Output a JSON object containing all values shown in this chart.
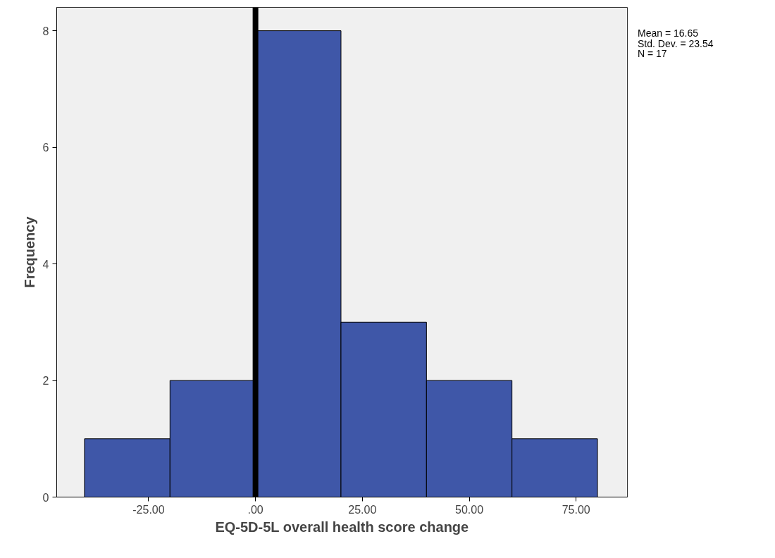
{
  "chart_data": {
    "type": "histogram",
    "xlabel": "EQ-5D-5L overall health score change",
    "ylabel": "Frequency",
    "bins": [
      -40,
      -20,
      0,
      20,
      40,
      60,
      80
    ],
    "values": [
      1,
      2,
      8,
      3,
      2,
      1
    ],
    "color": "#3f57a8",
    "xlim": [
      -46.5,
      87
    ],
    "ylim": [
      0,
      8.4
    ],
    "xticks": [
      {
        "value": -25,
        "label": "-25.00"
      },
      {
        "value": 0,
        "label": ".00"
      },
      {
        "value": 25,
        "label": "25.00"
      },
      {
        "value": 50,
        "label": "50.00"
      },
      {
        "value": 75,
        "label": "75.00"
      }
    ],
    "yticks": [
      0,
      2,
      4,
      6,
      8
    ],
    "ref_lines": [
      {
        "axis": "x",
        "value": 0,
        "color": "#000000"
      }
    ],
    "annotations": [
      "Mean = 16.65",
      "Std. Dev. = 23.54",
      "N = 17"
    ],
    "grid": false
  }
}
